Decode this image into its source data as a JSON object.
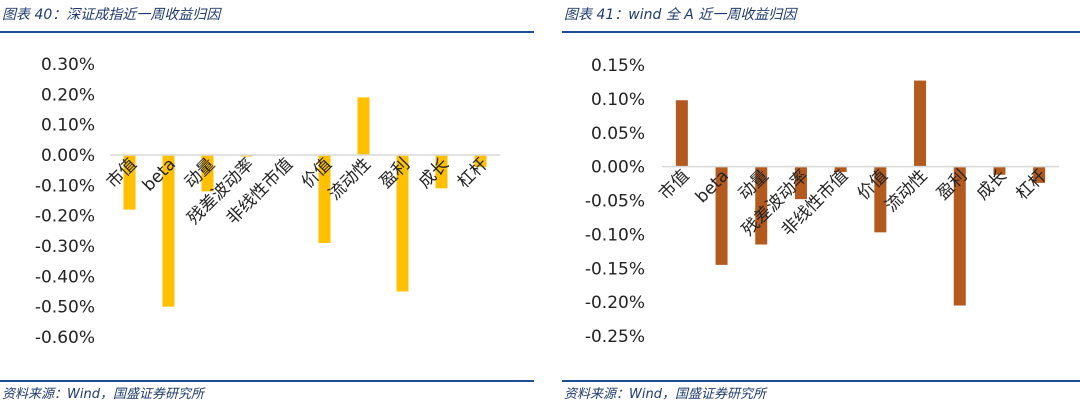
{
  "left": {
    "title": "图表 40：深证成指近一周收益归因",
    "source": "资料来源：Wind，国盛证券研究所"
  },
  "right": {
    "title": "图表 41：wind 全 A 近一周收益归因",
    "source": "资料来源：Wind，国盛证券研究所"
  },
  "chart_data": [
    {
      "type": "bar",
      "categories": [
        "市值",
        "beta",
        "动量",
        "残差波动率",
        "非线性市值",
        "价值",
        "流动性",
        "盈利",
        "成长",
        "杠杆"
      ],
      "values": [
        -0.18,
        -0.5,
        -0.12,
        -0.005,
        0.0,
        -0.29,
        0.19,
        -0.45,
        -0.11,
        -0.04
      ],
      "ylim": [
        -0.6,
        0.3
      ],
      "yticks": [
        "0.30%",
        "0.20%",
        "0.10%",
        "0.00%",
        "-0.10%",
        "-0.20%",
        "-0.30%",
        "-0.40%",
        "-0.50%",
        "-0.60%"
      ],
      "color": "#ffc000",
      "grid": false
    },
    {
      "type": "bar",
      "categories": [
        "市值",
        "beta",
        "动量",
        "残差波动率",
        "非线性市值",
        "价值",
        "流动性",
        "盈利",
        "成长",
        "杠杆"
      ],
      "values": [
        0.098,
        -0.145,
        -0.115,
        -0.048,
        -0.008,
        -0.097,
        0.127,
        -0.205,
        -0.012,
        -0.024
      ],
      "ylim": [
        -0.25,
        0.15
      ],
      "yticks": [
        "0.15%",
        "0.10%",
        "0.05%",
        "0.00%",
        "-0.05%",
        "-0.10%",
        "-0.15%",
        "-0.20%",
        "-0.25%"
      ],
      "color": "#b35a1f",
      "grid": false
    }
  ]
}
